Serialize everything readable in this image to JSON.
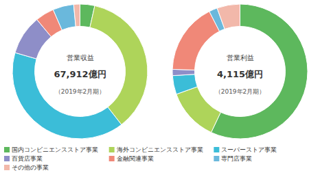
{
  "chart_data": [
    {
      "type": "pie",
      "title": "営業収益",
      "annotations": [
        "67,912億円",
        "（2019年2月期）"
      ],
      "categories": [
        "国内コンビニエンスストア事業",
        "海外コンビニエンスストア事業",
        "スーパーストア事業",
        "百貨店事業",
        "金融関連事業",
        "専門店事業",
        "その他の事業"
      ],
      "values": [
        3.5,
        36.0,
        40.0,
        9.5,
        4.5,
        5.0,
        1.5
      ],
      "colors": [
        "#5db85d",
        "#aed45a",
        "#3bbdd8",
        "#8e8ec8",
        "#f08878",
        "#6ab8dc",
        "#f2b8aa"
      ],
      "legend": "bottom"
    },
    {
      "type": "pie",
      "title": "営業利益",
      "annotations": [
        "4,115億円",
        "（2019年2月期）"
      ],
      "categories": [
        "国内コンビニエンスストア事業",
        "海外コンビニエンスストア事業",
        "スーパーストア事業",
        "百貨店事業",
        "金融関連事業",
        "専門店事業",
        "その他の事業"
      ],
      "values": [
        57.0,
        12.5,
        4.5,
        1.5,
        17.0,
        2.0,
        5.5
      ],
      "colors": [
        "#5db85d",
        "#aed45a",
        "#3bbdd8",
        "#8e8ec8",
        "#f08878",
        "#6ab8dc",
        "#f2b8aa"
      ]
    }
  ]
}
